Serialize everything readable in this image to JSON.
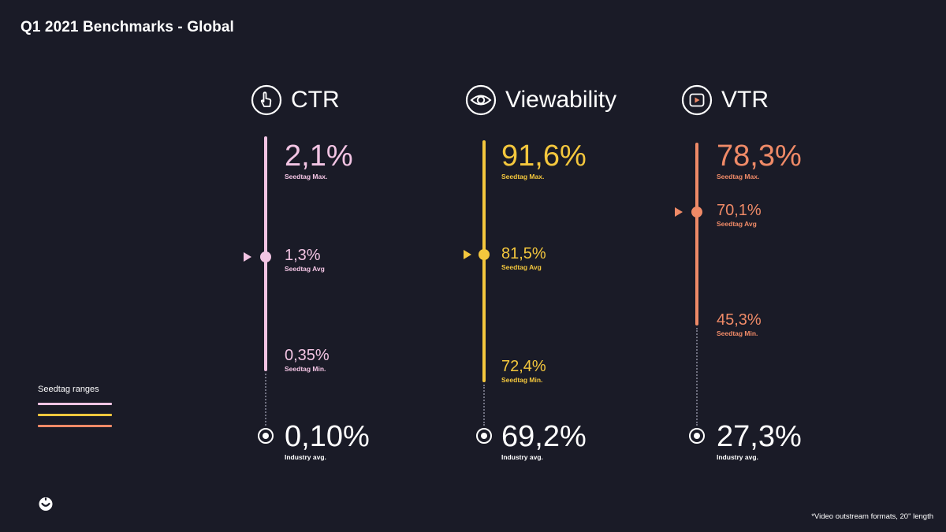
{
  "title": "Q1 2021 Benchmarks - Global",
  "colors": {
    "background": "#1a1b27",
    "ctr": "#f2c4e3",
    "viewability": "#f4c73d",
    "vtr": "#ef8a67",
    "industry": "#ffffff"
  },
  "chart_data": {
    "type": "range",
    "title": "Q1 2021 Benchmarks - Global",
    "legend": {
      "title": "Seedtag ranges",
      "position": "bottom-left"
    },
    "metrics": [
      {
        "name": "CTR",
        "icon": "pointer-hand-icon",
        "max": {
          "value": "2,1%",
          "label": "Seedtag Max."
        },
        "avg": {
          "value": "1,3%",
          "label": "Seedtag Avg"
        },
        "min": {
          "value": "0,35%",
          "label": "Seedtag Min."
        },
        "industry": {
          "value": "0,10%",
          "label": "Industry avg."
        }
      },
      {
        "name": "Viewability",
        "icon": "eye-icon",
        "max": {
          "value": "91,6%",
          "label": "Seedtag Max."
        },
        "avg": {
          "value": "81,5%",
          "label": "Seedtag Avg"
        },
        "min": {
          "value": "72,4%",
          "label": "Seedtag Min."
        },
        "industry": {
          "value": "69,2%",
          "label": "Industry avg."
        }
      },
      {
        "name": "VTR",
        "icon": "play-icon",
        "max": {
          "value": "78,3%",
          "label": "Seedtag Max."
        },
        "avg": {
          "value": "70,1%",
          "label": "Seedtag Avg"
        },
        "min": {
          "value": "45,3%",
          "label": "Seedtag Min."
        },
        "industry": {
          "value": "27,3%",
          "label": "Industry avg."
        }
      }
    ]
  },
  "footnote": "*Video outstream formats, 20\" length",
  "logo": "seedtag-logo-icon"
}
